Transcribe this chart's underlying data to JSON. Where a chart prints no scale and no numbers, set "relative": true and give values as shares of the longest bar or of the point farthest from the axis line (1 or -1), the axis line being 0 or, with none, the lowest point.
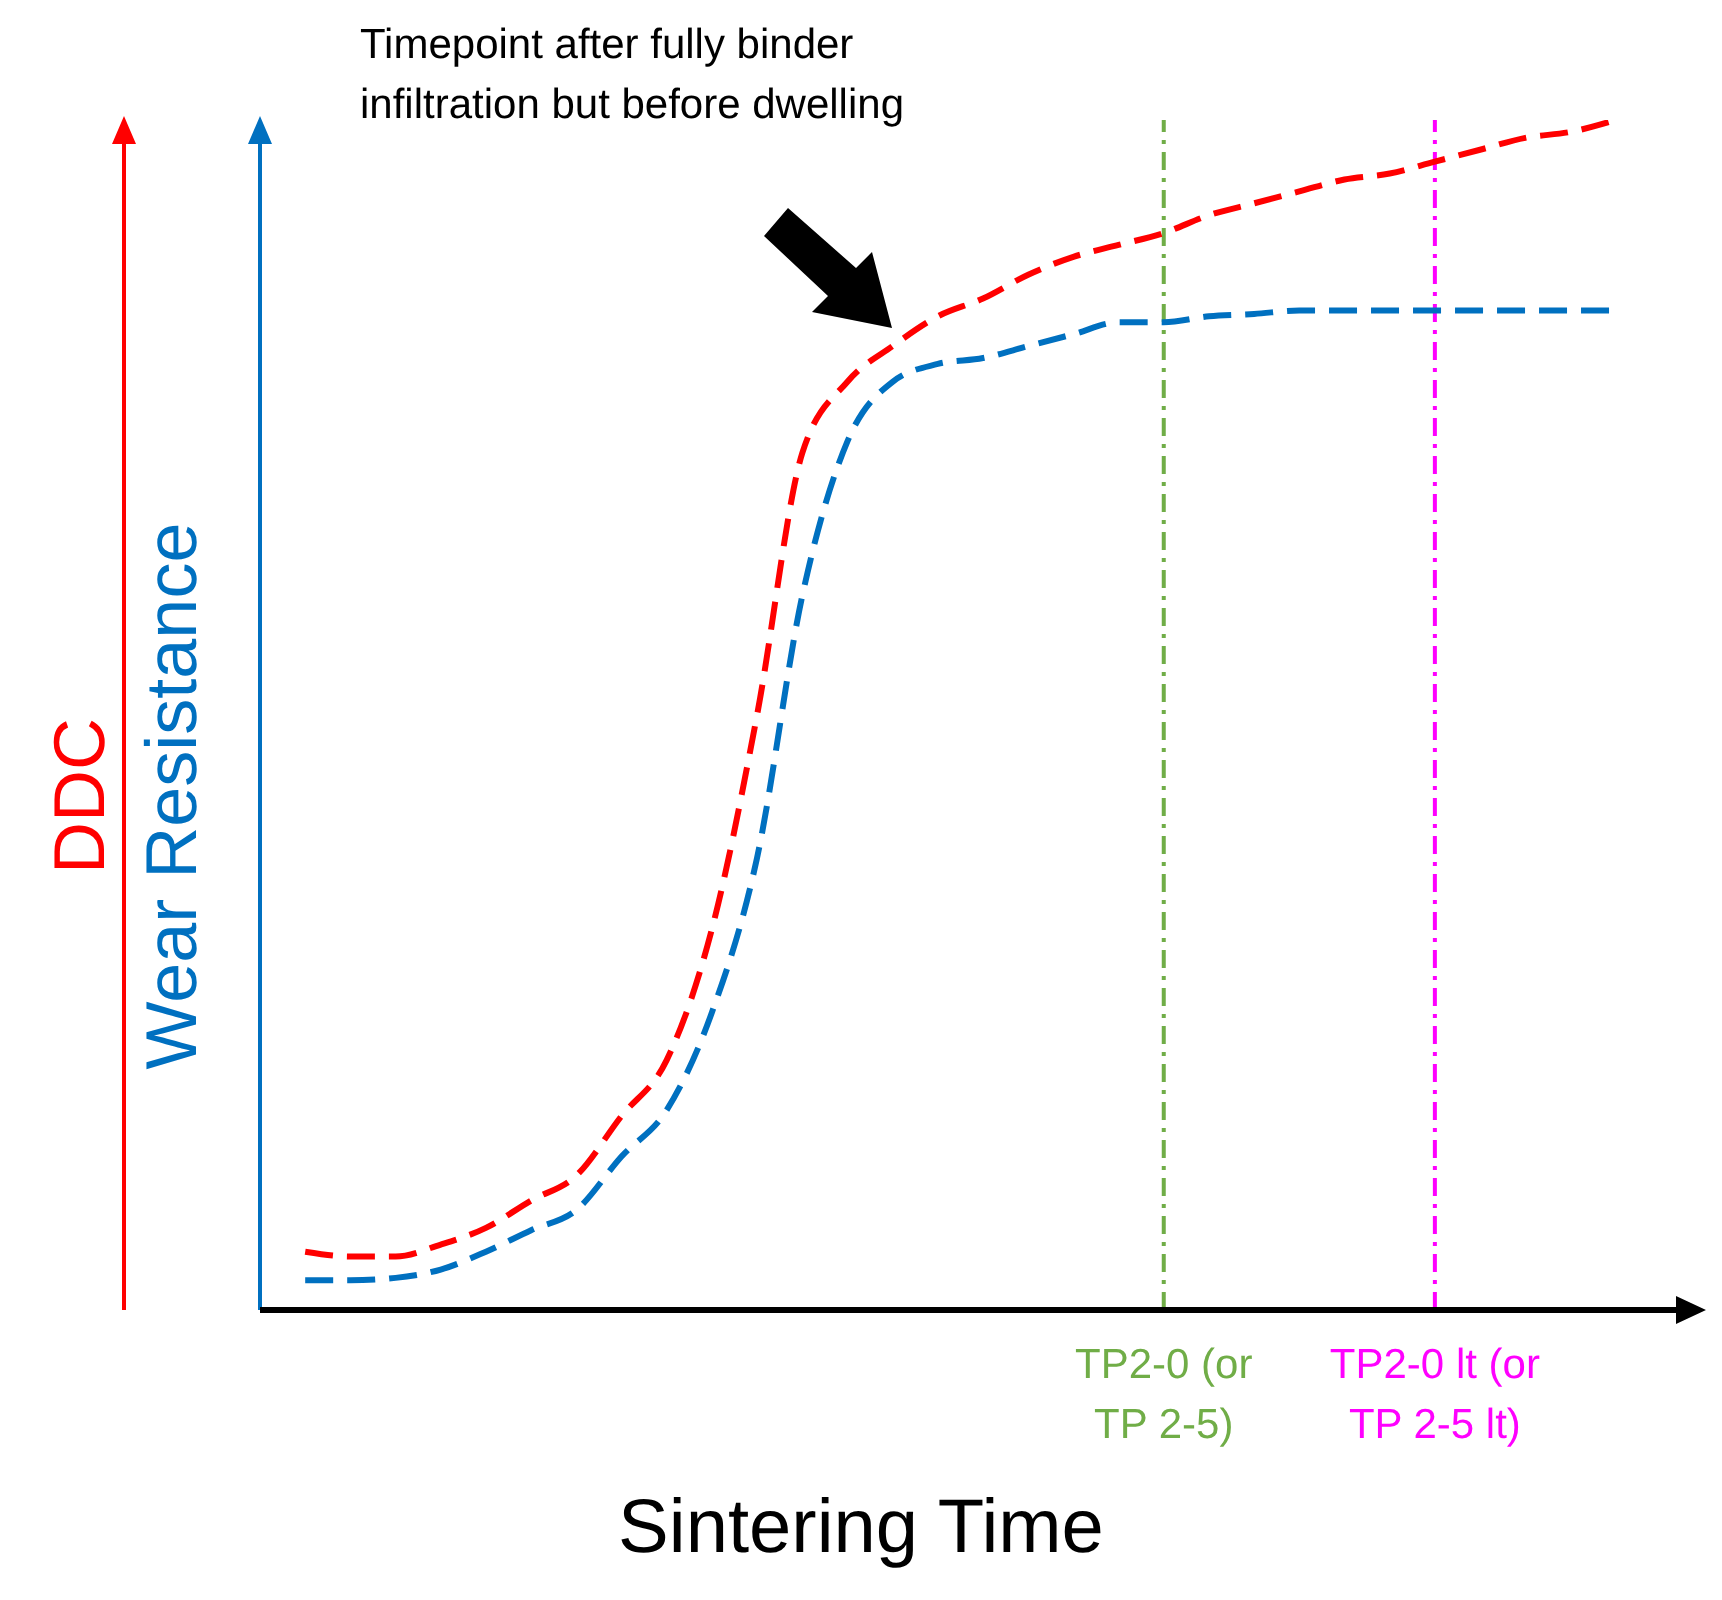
{
  "chart_data": {
    "type": "line",
    "relative": true,
    "xlabel": "Sintering Time",
    "legend": false,
    "line_style": "dashed",
    "marker": "none",
    "categories": [
      null,
      null,
      null,
      null,
      null,
      null,
      null,
      null,
      null,
      null,
      null,
      null,
      null,
      null,
      null,
      null,
      null,
      null,
      null,
      "TP2-0 (or TP 2-5)",
      null,
      null,
      null,
      null,
      null,
      "TP2-0 lt (or TP 2-5 lt)",
      null,
      null,
      null,
      null
    ],
    "series": [
      {
        "name": "DDC",
        "color": "#ff0000",
        "values": [
          0.049,
          0.045,
          0.045,
          0.055,
          0.069,
          0.092,
          0.113,
          0.163,
          0.21,
          0.32,
          0.5,
          0.72,
          0.78,
          0.81,
          0.835,
          0.85,
          0.87,
          0.885,
          0.895,
          0.905,
          0.92,
          0.93,
          0.94,
          0.95,
          0.955,
          0.965,
          0.975,
          0.985,
          0.99,
          1.0
        ]
      },
      {
        "name": "Wear Resistance",
        "color": "#0070c0",
        "values": [
          0.025,
          0.025,
          0.027,
          0.034,
          0.049,
          0.067,
          0.084,
          0.129,
          0.168,
          0.25,
          0.38,
          0.6,
          0.73,
          0.78,
          0.795,
          0.8,
          0.81,
          0.82,
          0.83,
          0.83,
          0.835,
          0.837,
          0.84,
          0.84,
          0.84,
          0.84,
          0.84,
          0.84,
          0.84,
          0.84
        ]
      }
    ],
    "ref_lines": [
      {
        "axis": "x",
        "value": "TP2-0 (or TP 2-5)",
        "color": "#70ad47",
        "line_style": "dashed"
      },
      {
        "axis": "x",
        "value": "TP2-0 lt (or TP 2-5 lt)",
        "color": "#ff00ff",
        "line_style": "dashed"
      }
    ],
    "annotations": [
      "Timepoint after fully binder infiltration but before dwelling"
    ]
  }
}
